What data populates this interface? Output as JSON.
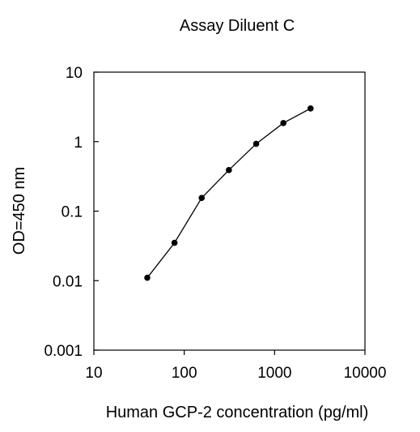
{
  "chart_data": {
    "type": "line",
    "title": "Assay Diluent C",
    "xlabel": "Human GCP-2 concentration (pg/ml)",
    "ylabel": "OD=450 nm",
    "xscale": "log",
    "yscale": "log",
    "xlim": [
      10,
      10000
    ],
    "ylim": [
      0.001,
      10
    ],
    "xticks": [
      "10",
      "100",
      "1000",
      "10000"
    ],
    "yticks": [
      "0.001",
      "0.01",
      "0.1",
      "1",
      "10"
    ],
    "grid": false,
    "legend": "none",
    "series": [
      {
        "x": [
          39,
          78,
          156,
          312,
          625,
          1250,
          2500
        ],
        "y": [
          0.011,
          0.035,
          0.155,
          0.39,
          0.93,
          1.85,
          3.0
        ]
      }
    ]
  }
}
